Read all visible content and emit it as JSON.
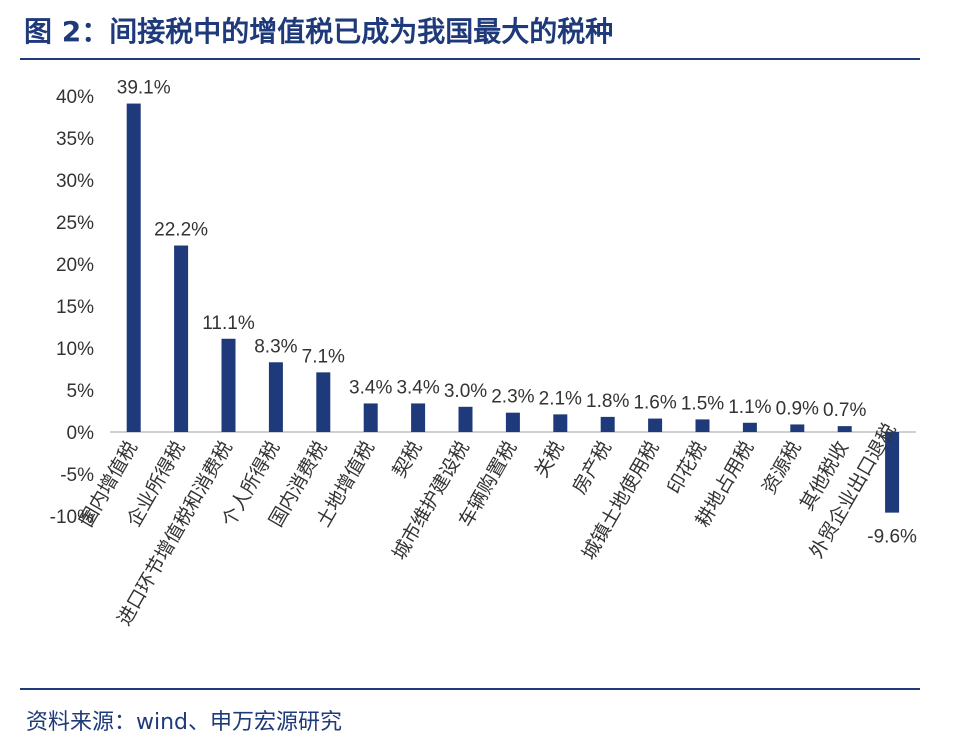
{
  "figure": {
    "title": "图 2：间接税中的增值税已成为我国最大的税种",
    "source": "资料来源：wind、申万宏源研究"
  },
  "colors": {
    "bar": "#1f3a7a",
    "title": "#1f3a7a",
    "text": "#333333"
  },
  "chart_data": {
    "type": "bar",
    "categories": [
      "国内增值税",
      "企业所得税",
      "进口环节增值税和消费税",
      "个人所得税",
      "国内消费税",
      "土地增值税",
      "契税",
      "城市维护建设税",
      "车辆购置税",
      "关税",
      "房产税",
      "城镇土地使用税",
      "印花税",
      "耕地占用税",
      "资源税",
      "其他税收",
      "外贸企业出口退税"
    ],
    "values": [
      39.1,
      22.2,
      11.1,
      8.3,
      7.1,
      3.4,
      3.4,
      3.0,
      2.3,
      2.1,
      1.8,
      1.6,
      1.5,
      1.1,
      0.9,
      0.7,
      -9.6
    ],
    "value_labels": [
      "39.1%",
      "22.2%",
      "11.1%",
      "8.3%",
      "7.1%",
      "3.4%",
      "3.4%",
      "3.0%",
      "2.3%",
      "2.1%",
      "1.8%",
      "1.6%",
      "1.5%",
      "1.1%",
      "0.9%",
      "0.7%",
      "-9.6%"
    ],
    "yticks": [
      "40%",
      "35%",
      "30%",
      "25%",
      "20%",
      "15%",
      "10%",
      "5%",
      "0%",
      "-5%",
      "-10%"
    ],
    "ytick_values": [
      40,
      35,
      30,
      25,
      20,
      15,
      10,
      5,
      0,
      -5,
      -10
    ],
    "ylim": [
      -10,
      40
    ],
    "grid": false,
    "legend": "none"
  }
}
